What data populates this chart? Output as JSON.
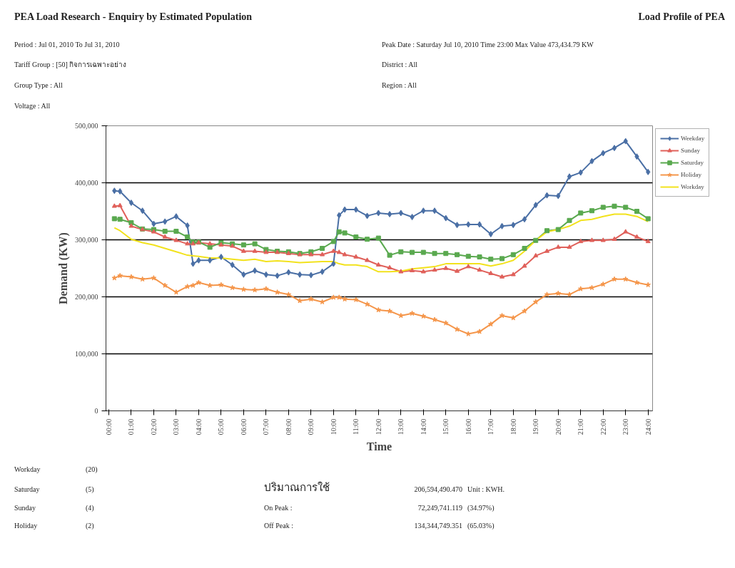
{
  "chart_data": {
    "type": "line",
    "title": "PEA Load Research - Enquiry by Estimated Population",
    "subtitle": "Load Profile of PEA",
    "xlabel": "Time",
    "ylabel": "Demand (KW)",
    "x": [
      0.25,
      0.5,
      1,
      1.5,
      2,
      2.5,
      3,
      3.5,
      3.75,
      4,
      4.5,
      5,
      5.5,
      6,
      6.5,
      7,
      7.5,
      8,
      8.5,
      9,
      9.5,
      10,
      10.25,
      10.5,
      11,
      11.5,
      12,
      12.5,
      13,
      13.5,
      14,
      14.5,
      15,
      15.5,
      16,
      16.5,
      17,
      17.5,
      18,
      18.5,
      19,
      19.5,
      20,
      20.5,
      21,
      21.5,
      22,
      22.5,
      23,
      23.5,
      24
    ],
    "series": [
      {
        "name": "Weekday",
        "color": "#4a6fa5",
        "marker": "diamond",
        "values": [
          386000,
          385000,
          365000,
          351000,
          328000,
          332000,
          341000,
          325000,
          258000,
          264000,
          264000,
          270000,
          256000,
          239000,
          246000,
          239000,
          237000,
          243000,
          239000,
          238000,
          244000,
          258000,
          343000,
          353000,
          353000,
          342000,
          347000,
          345000,
          347000,
          340000,
          351000,
          351000,
          338000,
          326000,
          327000,
          327000,
          310000,
          324000,
          326000,
          336000,
          361000,
          378000,
          377000,
          411000,
          418000,
          438000,
          452000,
          461000,
          473000,
          446000,
          419000
        ]
      },
      {
        "name": "Sunday",
        "color": "#e0605a",
        "marker": "triangle",
        "values": [
          359000,
          360000,
          324000,
          318000,
          314000,
          305000,
          299000,
          293000,
          293000,
          295000,
          293000,
          291000,
          289000,
          280000,
          280000,
          278000,
          278000,
          276000,
          274000,
          274000,
          274000,
          280000,
          278000,
          274000,
          270000,
          264000,
          256000,
          251000,
          244000,
          246000,
          244000,
          247000,
          250000,
          245000,
          253000,
          247000,
          241000,
          235000,
          239000,
          254000,
          272000,
          280000,
          287000,
          287000,
          297000,
          299000,
          299000,
          301000,
          314000,
          305000,
          297000
        ]
      },
      {
        "name": "Saturday",
        "color": "#5aa94f",
        "marker": "square",
        "values": [
          337000,
          336000,
          330000,
          319000,
          318000,
          315000,
          315000,
          305000,
          296000,
          296000,
          287000,
          295000,
          293000,
          291000,
          293000,
          283000,
          280000,
          279000,
          276000,
          279000,
          285000,
          297000,
          314000,
          312000,
          305000,
          301000,
          303000,
          273000,
          279000,
          278000,
          278000,
          276000,
          276000,
          274000,
          271000,
          270000,
          266000,
          267000,
          274000,
          285000,
          299000,
          316000,
          318000,
          334000,
          347000,
          351000,
          357000,
          359000,
          357000,
          350000,
          337000
        ]
      },
      {
        "name": "Holiday",
        "color": "#f5964b",
        "marker": "star",
        "values": [
          233000,
          237000,
          235000,
          231000,
          233000,
          220000,
          208000,
          218000,
          220000,
          225000,
          220000,
          221000,
          216000,
          213000,
          212000,
          214000,
          208000,
          204000,
          193000,
          196000,
          191000,
          199000,
          199000,
          196000,
          195000,
          187000,
          177000,
          175000,
          167000,
          171000,
          166000,
          160000,
          154000,
          143000,
          135000,
          139000,
          152000,
          167000,
          163000,
          175000,
          191000,
          204000,
          206000,
          204000,
          214000,
          216000,
          222000,
          231000,
          231000,
          225000,
          221000
        ]
      },
      {
        "name": "Workday",
        "color": "#f2e21d",
        "marker": "none",
        "values": [
          321000,
          316000,
          301000,
          295000,
          291000,
          285000,
          279000,
          273000,
          272000,
          271000,
          268000,
          268000,
          266000,
          264000,
          266000,
          262000,
          263000,
          262000,
          260000,
          261000,
          262000,
          262000,
          258000,
          256000,
          256000,
          253000,
          244000,
          244000,
          245000,
          249000,
          251000,
          253000,
          258000,
          258000,
          258000,
          258000,
          254000,
          258000,
          264000,
          280000,
          299000,
          314000,
          318000,
          324000,
          334000,
          336000,
          341000,
          345000,
          345000,
          341000,
          332000
        ]
      }
    ],
    "xlim": [
      -0.125,
      24.2
    ],
    "xticks": [
      {
        "value": 0,
        "label": "00:00"
      },
      {
        "value": 1,
        "label": "01:00"
      },
      {
        "value": 2,
        "label": "02:00"
      },
      {
        "value": 3,
        "label": "03:00"
      },
      {
        "value": 4,
        "label": "04:00"
      },
      {
        "value": 5,
        "label": "05:00"
      },
      {
        "value": 6,
        "label": "06:00"
      },
      {
        "value": 7,
        "label": "07:00"
      },
      {
        "value": 8,
        "label": "08:00"
      },
      {
        "value": 9,
        "label": "09:00"
      },
      {
        "value": 10,
        "label": "10:00"
      },
      {
        "value": 11,
        "label": "11:00"
      },
      {
        "value": 12,
        "label": "12:00"
      },
      {
        "value": 13,
        "label": "13:00"
      },
      {
        "value": 14,
        "label": "14:00"
      },
      {
        "value": 15,
        "label": "15:00"
      },
      {
        "value": 16,
        "label": "16:00"
      },
      {
        "value": 17,
        "label": "17:00"
      },
      {
        "value": 18,
        "label": "18:00"
      },
      {
        "value": 19,
        "label": "19:00"
      },
      {
        "value": 20,
        "label": "20:00"
      },
      {
        "value": 21,
        "label": "21:00"
      },
      {
        "value": 22,
        "label": "22:00"
      },
      {
        "value": 23,
        "label": "23:00"
      },
      {
        "value": 24,
        "label": "24:00"
      }
    ],
    "ylim": [
      0,
      500000
    ],
    "yticks": [
      0,
      {
        "value": 100000,
        "label": "100,000"
      },
      {
        "value": 200000,
        "label": "200,000"
      },
      {
        "value": 300000,
        "label": "300,000"
      },
      {
        "value": 400000,
        "label": "400,000"
      },
      {
        "value": 500000,
        "label": "500,000"
      }
    ],
    "grid": "y",
    "legend": "right",
    "line_style": "solid",
    "annotations": [
      "Period : Jul 01, 2010  To  Jul 31, 2010",
      "Peak Date : Saturday Jul 10, 2010  Time 23:00  Max Value 473,434.79 KW",
      "Tariff Group : [50] กิจการเฉพาะอย่าง",
      "District : All",
      "Group Type : All",
      "Region : All",
      "Voltage : All",
      "Workday",
      "(20)",
      "Saturday",
      "(5)",
      "ปริมาณการใช้",
      "206,594,490.470",
      "Unit : KWH.",
      "Sunday",
      "(4)",
      "On Peak :",
      "72,249,741.119",
      "(34.97%)",
      "Holiday",
      "(2)",
      "Off Peak :",
      "134,344,749.351",
      "(65.03%)"
    ]
  }
}
